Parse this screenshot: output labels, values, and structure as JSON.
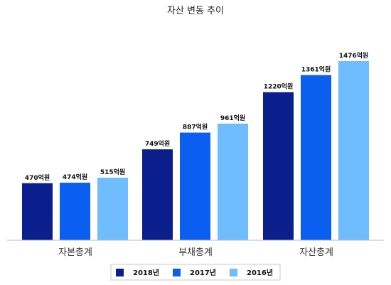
{
  "chart_data": {
    "type": "bar",
    "title": "자산 변동 추이",
    "categories": [
      "자본총계",
      "부채총계",
      "자산총계"
    ],
    "series": [
      {
        "name": "2018년",
        "color": "#0b1f8c",
        "values": [
          470,
          749,
          1220
        ],
        "labels": [
          "470억원",
          "749억원",
          "1220억원"
        ]
      },
      {
        "name": "2017년",
        "color": "#0a5ff0",
        "values": [
          474,
          887,
          1361
        ],
        "labels": [
          "474억원",
          "887억원",
          "1361억원"
        ]
      },
      {
        "name": "2016년",
        "color": "#6fbcff",
        "values": [
          515,
          961,
          1476
        ],
        "labels": [
          "515억원",
          "961억원",
          "1476억원"
        ]
      }
    ],
    "ylim": [
      0,
      1476
    ],
    "grid": false,
    "legend": "bottom"
  }
}
